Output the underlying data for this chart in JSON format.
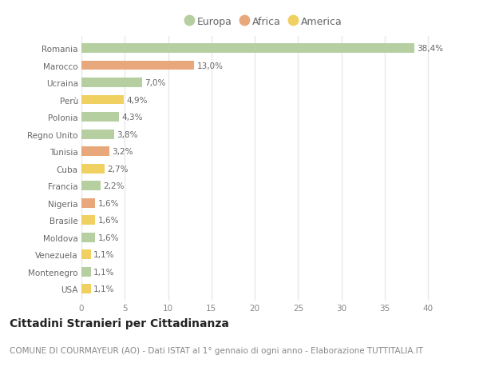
{
  "countries": [
    "Romania",
    "Marocco",
    "Ucraina",
    "Perù",
    "Polonia",
    "Regno Unito",
    "Tunisia",
    "Cuba",
    "Francia",
    "Nigeria",
    "Brasile",
    "Moldova",
    "Venezuela",
    "Montenegro",
    "USA"
  ],
  "values": [
    38.4,
    13.0,
    7.0,
    4.9,
    4.3,
    3.8,
    3.2,
    2.7,
    2.2,
    1.6,
    1.6,
    1.6,
    1.1,
    1.1,
    1.1
  ],
  "labels": [
    "38,4%",
    "13,0%",
    "7,0%",
    "4,9%",
    "4,3%",
    "3,8%",
    "3,2%",
    "2,7%",
    "2,2%",
    "1,6%",
    "1,6%",
    "1,6%",
    "1,1%",
    "1,1%",
    "1,1%"
  ],
  "continents": [
    "Europa",
    "Africa",
    "Europa",
    "America",
    "Europa",
    "Europa",
    "Africa",
    "America",
    "Europa",
    "Africa",
    "America",
    "Europa",
    "America",
    "Europa",
    "America"
  ],
  "colors": {
    "Europa": "#b5cfa0",
    "Africa": "#e8a87c",
    "America": "#f0d060"
  },
  "legend_colors": {
    "Europa": "#b5cfa0",
    "Africa": "#e8a87c",
    "America": "#f0d060"
  },
  "xlim": [
    0,
    42
  ],
  "xticks": [
    0,
    5,
    10,
    15,
    20,
    25,
    30,
    35,
    40
  ],
  "title": "Cittadini Stranieri per Cittadinanza",
  "subtitle": "COMUNE DI COURMAYEUR (AO) - Dati ISTAT al 1° gennaio di ogni anno - Elaborazione TUTTITALIA.IT",
  "background_color": "#ffffff",
  "plot_bg_color": "#ffffff",
  "grid_color": "#e8e8e8",
  "bar_height": 0.55,
  "title_fontsize": 10,
  "subtitle_fontsize": 7.5,
  "label_fontsize": 7.5,
  "tick_fontsize": 7.5,
  "legend_fontsize": 9
}
